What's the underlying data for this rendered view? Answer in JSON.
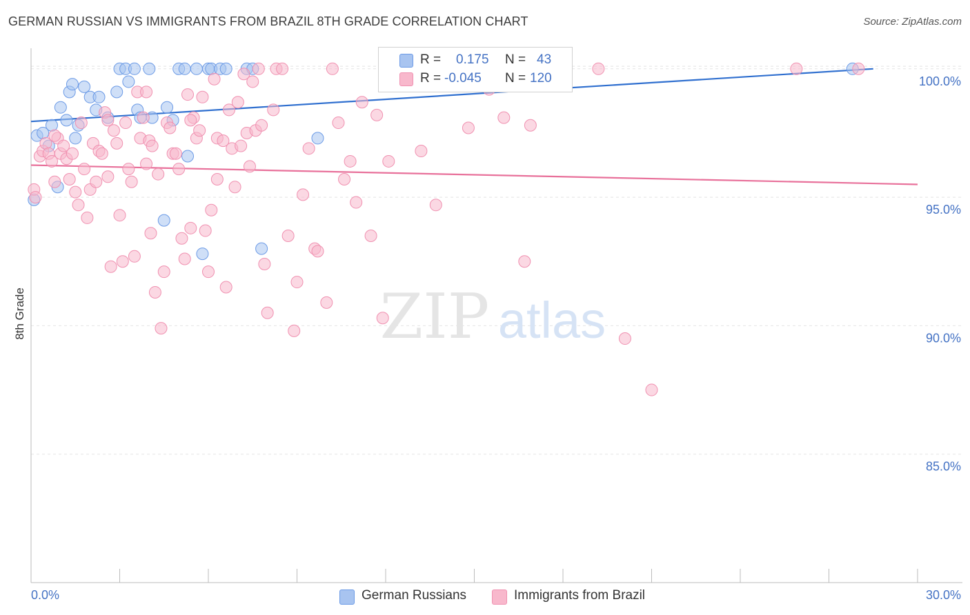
{
  "title": "GERMAN RUSSIAN VS IMMIGRANTS FROM BRAZIL 8TH GRADE CORRELATION CHART",
  "source": "Source: ZipAtlas.com",
  "watermark": {
    "zip": "ZIP",
    "atlas": "atlas"
  },
  "legend": {
    "rows": [
      {
        "r_label": "R =",
        "r_value": "0.175",
        "n_label": "N =",
        "n_value": "43",
        "color": "#a8c4f0"
      },
      {
        "r_label": "R =",
        "r_value": "-0.045",
        "n_label": "N =",
        "n_value": "120",
        "color": "#f8b8cc"
      }
    ]
  },
  "chart_data": {
    "type": "scatter",
    "title": "GERMAN RUSSIAN VS IMMIGRANTS FROM BRAZIL 8TH GRADE CORRELATION CHART",
    "ylabel": "8th Grade",
    "xlabel": "",
    "xlim": [
      0,
      30
    ],
    "ylim": [
      80.0,
      100.8
    ],
    "x_tick_labels": [
      "0.0%",
      "30.0%"
    ],
    "y_tick_labels": [
      "100.0%",
      "95.0%",
      "90.0%",
      "85.0%"
    ],
    "y_ticks": [
      100,
      95,
      90,
      85
    ],
    "grid": true,
    "series": [
      {
        "name": "German Russians",
        "color": "#6b9ae6",
        "fill": "#a8c4f0",
        "trend": {
          "x": [
            0,
            28.5
          ],
          "y": [
            97.95,
            100.0
          ],
          "color": "#2f6fcf"
        },
        "points": [
          [
            0.1,
            94.9
          ],
          [
            0.2,
            97.4
          ],
          [
            0.4,
            97.5
          ],
          [
            0.6,
            97.0
          ],
          [
            0.7,
            97.8
          ],
          [
            0.9,
            95.4
          ],
          [
            1.0,
            98.5
          ],
          [
            1.2,
            98.0
          ],
          [
            1.3,
            99.1
          ],
          [
            1.4,
            99.4
          ],
          [
            1.5,
            97.3
          ],
          [
            1.6,
            97.8
          ],
          [
            1.8,
            99.3
          ],
          [
            2.0,
            98.9
          ],
          [
            2.2,
            98.4
          ],
          [
            2.3,
            98.9
          ],
          [
            2.6,
            98.1
          ],
          [
            2.9,
            99.1
          ],
          [
            3.0,
            100.0
          ],
          [
            3.2,
            100.0
          ],
          [
            3.3,
            99.5
          ],
          [
            3.5,
            100.0
          ],
          [
            3.6,
            98.4
          ],
          [
            3.7,
            98.1
          ],
          [
            4.0,
            100.0
          ],
          [
            4.1,
            98.1
          ],
          [
            4.5,
            94.1
          ],
          [
            4.6,
            98.5
          ],
          [
            4.8,
            98.0
          ],
          [
            5.0,
            100.0
          ],
          [
            5.2,
            100.0
          ],
          [
            5.3,
            96.6
          ],
          [
            5.6,
            100.0
          ],
          [
            5.8,
            92.8
          ],
          [
            6.0,
            100.0
          ],
          [
            6.1,
            100.0
          ],
          [
            6.4,
            100.0
          ],
          [
            6.6,
            100.0
          ],
          [
            7.3,
            100.0
          ],
          [
            7.5,
            100.0
          ],
          [
            7.8,
            93.0
          ],
          [
            9.7,
            97.3
          ],
          [
            27.8,
            100.0
          ]
        ]
      },
      {
        "name": "Immigrants from Brazil",
        "color": "#f090b0",
        "fill": "#f8b8cc",
        "trend": {
          "x": [
            0,
            30
          ],
          "y": [
            96.25,
            95.5
          ],
          "color": "#e8709a"
        },
        "points": [
          [
            0.1,
            95.3
          ],
          [
            0.15,
            95.0
          ],
          [
            0.3,
            96.6
          ],
          [
            0.4,
            96.8
          ],
          [
            0.5,
            97.1
          ],
          [
            0.6,
            96.7
          ],
          [
            0.7,
            96.4
          ],
          [
            0.8,
            95.6
          ],
          [
            0.9,
            97.3
          ],
          [
            1.0,
            96.7
          ],
          [
            1.1,
            97.0
          ],
          [
            1.2,
            96.5
          ],
          [
            1.3,
            95.7
          ],
          [
            1.4,
            96.7
          ],
          [
            1.5,
            95.2
          ],
          [
            1.6,
            94.7
          ],
          [
            1.7,
            97.9
          ],
          [
            1.8,
            96.1
          ],
          [
            1.9,
            94.2
          ],
          [
            2.0,
            95.3
          ],
          [
            2.1,
            97.1
          ],
          [
            2.2,
            95.6
          ],
          [
            2.3,
            96.8
          ],
          [
            2.4,
            96.7
          ],
          [
            2.5,
            98.3
          ],
          [
            2.6,
            95.8
          ],
          [
            2.7,
            92.3
          ],
          [
            2.8,
            97.6
          ],
          [
            2.9,
            97.1
          ],
          [
            3.0,
            94.3
          ],
          [
            3.1,
            92.5
          ],
          [
            3.2,
            97.9
          ],
          [
            3.3,
            96.1
          ],
          [
            3.4,
            95.6
          ],
          [
            3.5,
            92.7
          ],
          [
            3.6,
            99.1
          ],
          [
            3.7,
            97.3
          ],
          [
            3.8,
            98.1
          ],
          [
            3.9,
            99.1
          ],
          [
            4.0,
            97.2
          ],
          [
            4.05,
            93.6
          ],
          [
            4.1,
            97.0
          ],
          [
            4.2,
            91.3
          ],
          [
            4.3,
            95.9
          ],
          [
            4.4,
            89.9
          ],
          [
            4.5,
            92.1
          ],
          [
            4.6,
            97.9
          ],
          [
            4.7,
            97.7
          ],
          [
            4.8,
            96.7
          ],
          [
            4.9,
            96.7
          ],
          [
            5.0,
            96.1
          ],
          [
            5.1,
            93.4
          ],
          [
            5.2,
            92.6
          ],
          [
            5.3,
            99.0
          ],
          [
            5.4,
            93.8
          ],
          [
            5.5,
            98.1
          ],
          [
            5.6,
            97.3
          ],
          [
            5.7,
            97.6
          ],
          [
            5.8,
            98.9
          ],
          [
            5.9,
            93.7
          ],
          [
            6.0,
            92.1
          ],
          [
            6.1,
            94.5
          ],
          [
            6.2,
            99.6
          ],
          [
            6.3,
            97.3
          ],
          [
            6.5,
            97.2
          ],
          [
            6.6,
            91.5
          ],
          [
            6.7,
            98.4
          ],
          [
            6.8,
            96.9
          ],
          [
            6.9,
            95.4
          ],
          [
            7.0,
            98.7
          ],
          [
            7.1,
            97.0
          ],
          [
            7.2,
            99.8
          ],
          [
            7.3,
            97.5
          ],
          [
            7.5,
            99.5
          ],
          [
            7.6,
            97.6
          ],
          [
            7.7,
            100.0
          ],
          [
            7.8,
            97.8
          ],
          [
            7.9,
            92.4
          ],
          [
            8.0,
            90.5
          ],
          [
            8.2,
            98.4
          ],
          [
            8.3,
            100.0
          ],
          [
            8.5,
            100.0
          ],
          [
            8.7,
            93.5
          ],
          [
            8.9,
            89.8
          ],
          [
            9.0,
            91.7
          ],
          [
            9.2,
            95.1
          ],
          [
            9.6,
            93.0
          ],
          [
            9.7,
            92.9
          ],
          [
            10.0,
            90.9
          ],
          [
            10.2,
            100.0
          ],
          [
            10.6,
            95.7
          ],
          [
            10.8,
            96.4
          ],
          [
            11.2,
            98.7
          ],
          [
            11.5,
            93.5
          ],
          [
            11.7,
            98.2
          ],
          [
            11.9,
            90.3
          ],
          [
            12.1,
            96.4
          ],
          [
            12.5,
            100.0
          ],
          [
            13.7,
            94.7
          ],
          [
            14.3,
            100.0
          ],
          [
            14.8,
            97.7
          ],
          [
            16.0,
            98.1
          ],
          [
            16.9,
            97.8
          ],
          [
            16.7,
            92.5
          ],
          [
            19.2,
            100.0
          ],
          [
            20.1,
            89.5
          ],
          [
            21.0,
            87.5
          ],
          [
            25.9,
            100.0
          ],
          [
            28.0,
            100.0
          ],
          [
            0.8,
            97.4
          ],
          [
            2.6,
            98.0
          ],
          [
            3.9,
            96.3
          ],
          [
            5.4,
            98.0
          ],
          [
            6.3,
            95.7
          ],
          [
            7.4,
            96.2
          ],
          [
            9.4,
            96.9
          ],
          [
            10.4,
            97.9
          ],
          [
            11.0,
            94.8
          ],
          [
            13.2,
            96.8
          ],
          [
            15.5,
            99.2
          ]
        ]
      }
    ]
  },
  "bottom_legend": [
    {
      "label": "German Russians",
      "color": "#a8c4f0"
    },
    {
      "label": "Immigrants from Brazil",
      "color": "#f8b8cc"
    }
  ]
}
